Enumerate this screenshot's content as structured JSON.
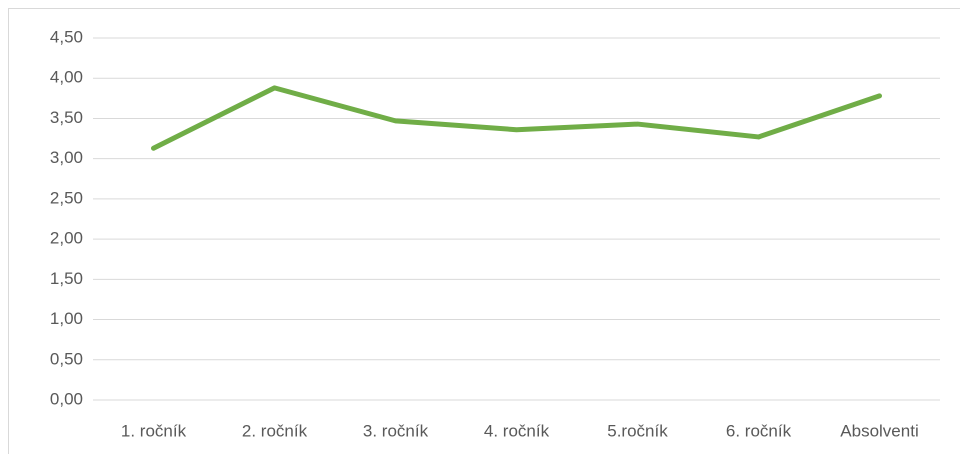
{
  "chart_data": {
    "type": "line",
    "categories": [
      "1. ročník",
      "2. ročník",
      "3. ročník",
      "4. ročník",
      "5.ročník",
      "6. ročník",
      "Absolventi"
    ],
    "series": [
      {
        "name": null,
        "color": "#70ad47",
        "values": [
          3.13,
          3.88,
          3.47,
          3.36,
          3.43,
          3.27,
          3.78
        ]
      }
    ],
    "ylim": [
      0,
      4.5
    ],
    "yticks": [
      {
        "value": 0,
        "label": "0,00"
      },
      {
        "value": 0.5,
        "label": "0,50"
      },
      {
        "value": 1,
        "label": "1,00"
      },
      {
        "value": 1.5,
        "label": "1,50"
      },
      {
        "value": 2,
        "label": "2,00"
      },
      {
        "value": 2.5,
        "label": "2,50"
      },
      {
        "value": 3,
        "label": "3,00"
      },
      {
        "value": 3.5,
        "label": "3,50"
      },
      {
        "value": 4,
        "label": "4,00"
      },
      {
        "value": 4.5,
        "label": "4,50"
      }
    ],
    "grid": true
  }
}
